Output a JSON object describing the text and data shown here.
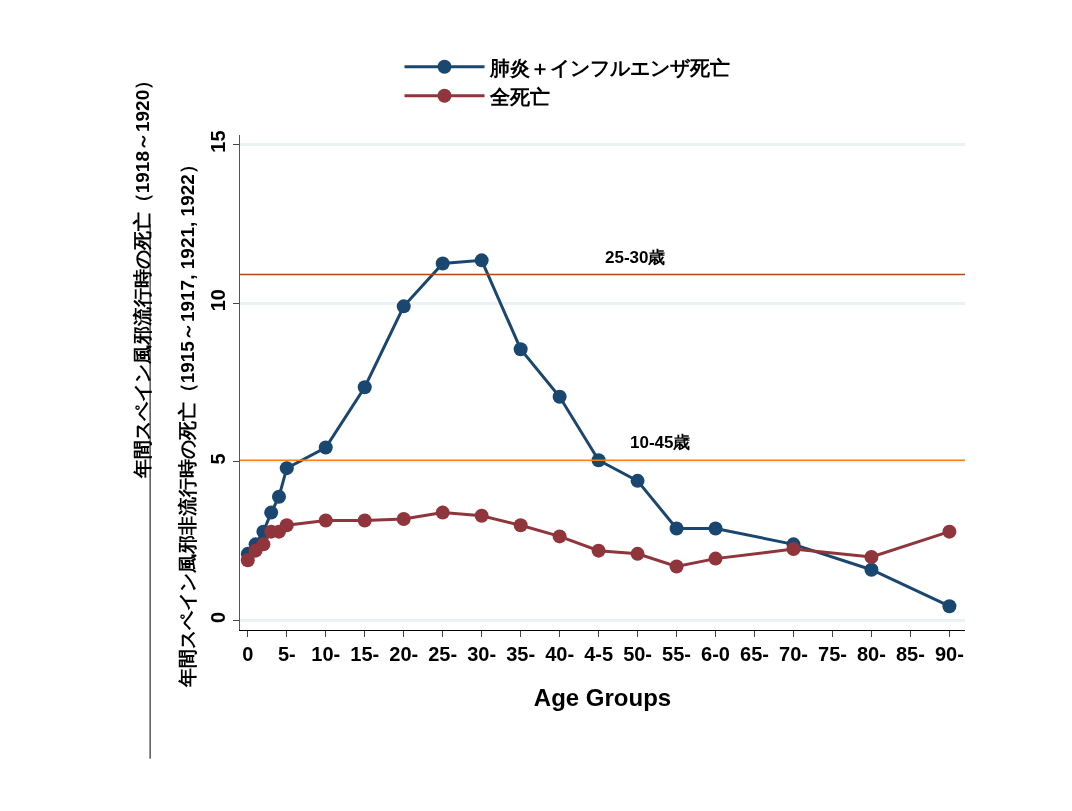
{
  "chart_data": {
    "type": "line",
    "xlabel": "Age Groups",
    "ylabel": "年間スペイン風邪流行時の死亡（1918～1920）",
    "annotations": [
      "年間スペイン風邪非流行時の死亡（1915～1917, 1921, 1922）"
    ],
    "x": [
      0,
      1,
      2,
      3,
      4,
      5,
      10,
      15,
      20,
      25,
      30,
      35,
      40,
      45,
      50,
      55,
      60,
      70,
      80,
      90
    ],
    "series": [
      {
        "name": "肺炎＋インフルエンザ死亡",
        "color": "#1a476f",
        "values": [
          2.1,
          2.4,
          2.8,
          3.4,
          3.9,
          4.8,
          5.45,
          7.35,
          9.9,
          11.25,
          11.35,
          8.55,
          7.05,
          5.05,
          4.4,
          2.9,
          2.9,
          2.4,
          1.6,
          0.45
        ]
      },
      {
        "name": "全死亡",
        "color": "#90353b",
        "values": [
          1.9,
          2.2,
          2.4,
          2.8,
          2.8,
          3.0,
          3.15,
          3.15,
          3.2,
          3.4,
          3.3,
          3.0,
          2.65,
          2.2,
          2.1,
          1.7,
          1.95,
          2.25,
          2.0,
          2.8
        ]
      }
    ],
    "xlim": [
      -1,
      92
    ],
    "xticks": [
      0,
      {
        "value": 5,
        "label": "5-"
      },
      {
        "value": 10,
        "label": "10-"
      },
      {
        "value": 15,
        "label": "15-"
      },
      {
        "value": 20,
        "label": "20-"
      },
      {
        "value": 25,
        "label": "25-"
      },
      {
        "value": 30,
        "label": "30-"
      },
      {
        "value": 35,
        "label": "35-"
      },
      {
        "value": 40,
        "label": "40-"
      },
      {
        "value": 45,
        "label": "4-5"
      },
      {
        "value": 50,
        "label": "50-"
      },
      {
        "value": 55,
        "label": "55-"
      },
      {
        "value": 60,
        "label": "6-0"
      },
      {
        "value": 65,
        "label": "65-"
      },
      {
        "value": 70,
        "label": "70-"
      },
      {
        "value": 75,
        "label": "75-"
      },
      {
        "value": 80,
        "label": "80-"
      },
      {
        "value": 85,
        "label": "85-"
      },
      {
        "value": 90,
        "label": "90-"
      }
    ],
    "ylim": [
      -0.3,
      15.3
    ],
    "yticks": [
      0,
      5,
      10,
      15
    ],
    "ref_lines": [
      {
        "axis": "y",
        "value": 10.9,
        "label": "25-30歳",
        "color": "#b5451b"
      },
      {
        "axis": "y",
        "value": 5.05,
        "label": "10-45歳",
        "color": "#ff7f0e"
      }
    ],
    "grid": "y",
    "legend": "top",
    "marker": "circle",
    "line_style": "solid"
  }
}
